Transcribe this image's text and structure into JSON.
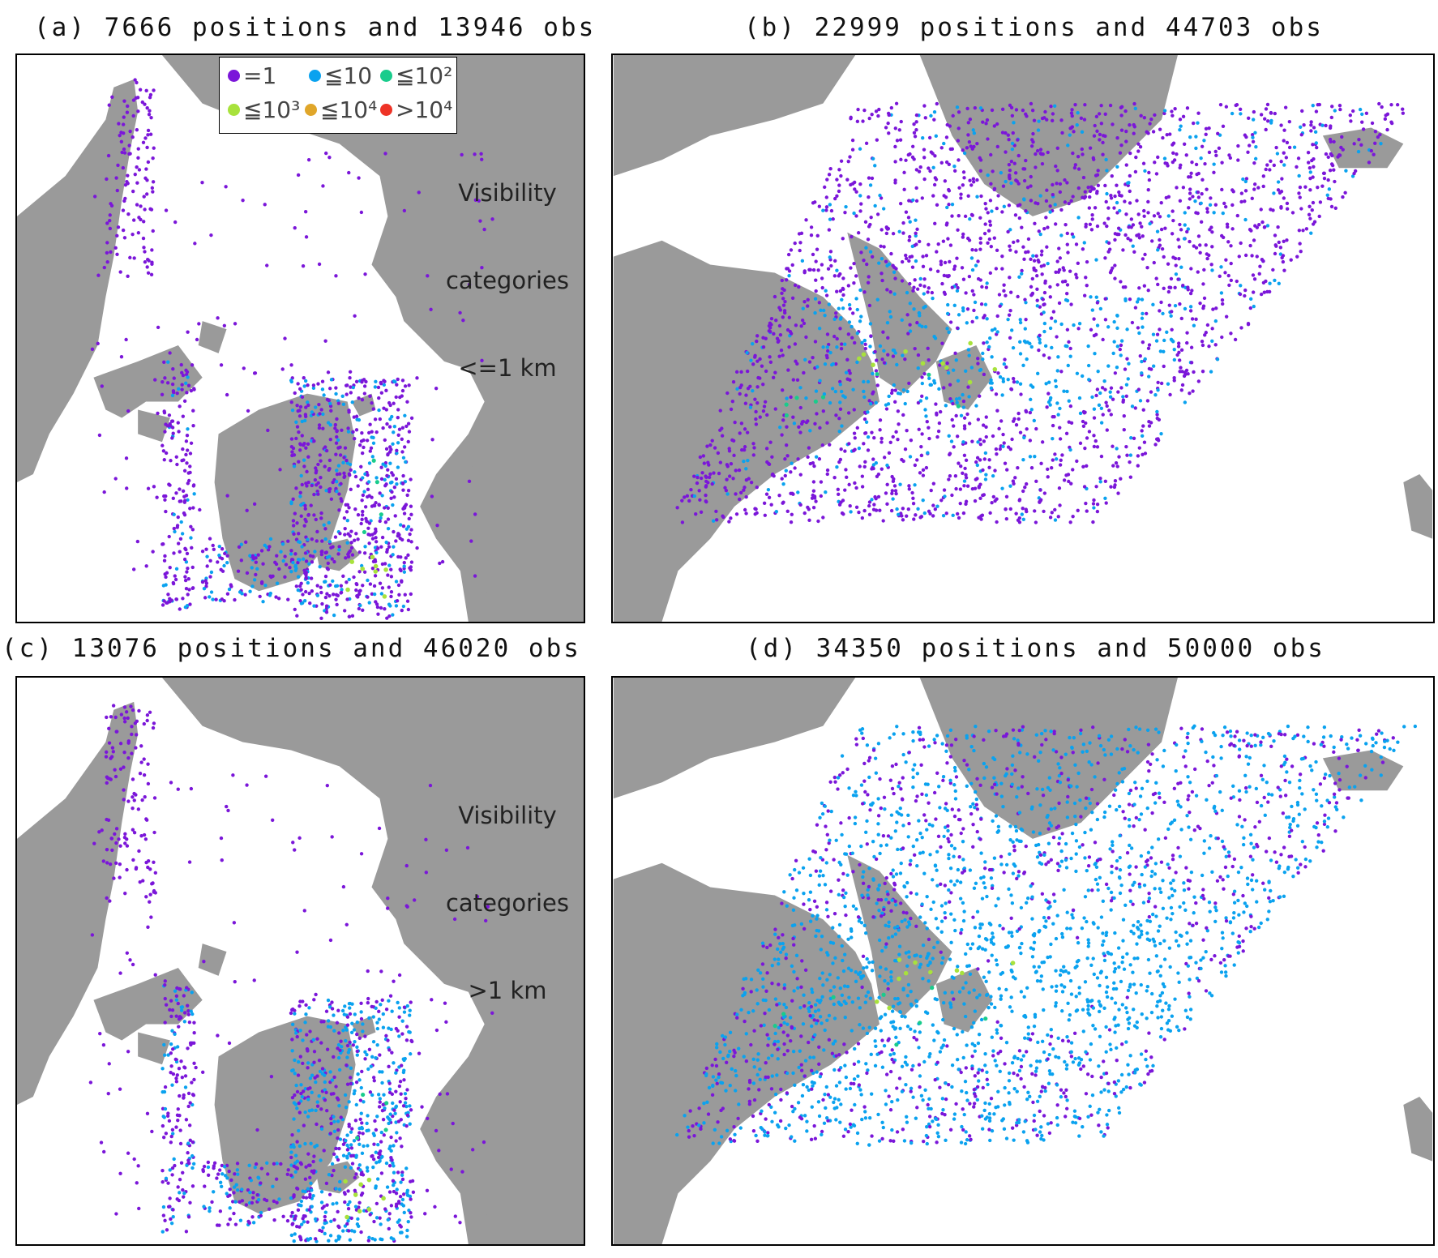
{
  "panels": [
    {
      "id": "a",
      "title": "(a) 7666 positions and 13946 obs",
      "note_lines": [
        "Visibility",
        "categories",
        "<=1 km"
      ]
    },
    {
      "id": "b",
      "title": "(b) 22999 positions and 44703 obs"
    },
    {
      "id": "c",
      "title": "(c) 13076 positions and 46020 obs",
      "note_lines": [
        "Visibility",
        "categories",
        ">1 km"
      ]
    },
    {
      "id": "d",
      "title": "(d) 34350 positions and 50000 obs"
    }
  ],
  "legend": {
    "items": [
      {
        "label": "=1",
        "color": "#7b16d9"
      },
      {
        "label": "≦10",
        "color": "#0aa2ef"
      },
      {
        "label": "≦10²",
        "color": "#19cc8c"
      },
      {
        "label": "≦10³",
        "color": "#a8e23c"
      },
      {
        "label": "≦10⁴",
        "color": "#e0a62a"
      },
      {
        "label": ">10⁴",
        "color": "#ee3326"
      }
    ]
  },
  "colors": {
    "land": "#9a9a9a",
    "ocean": "#ffffff",
    "frame": "#000000"
  }
}
